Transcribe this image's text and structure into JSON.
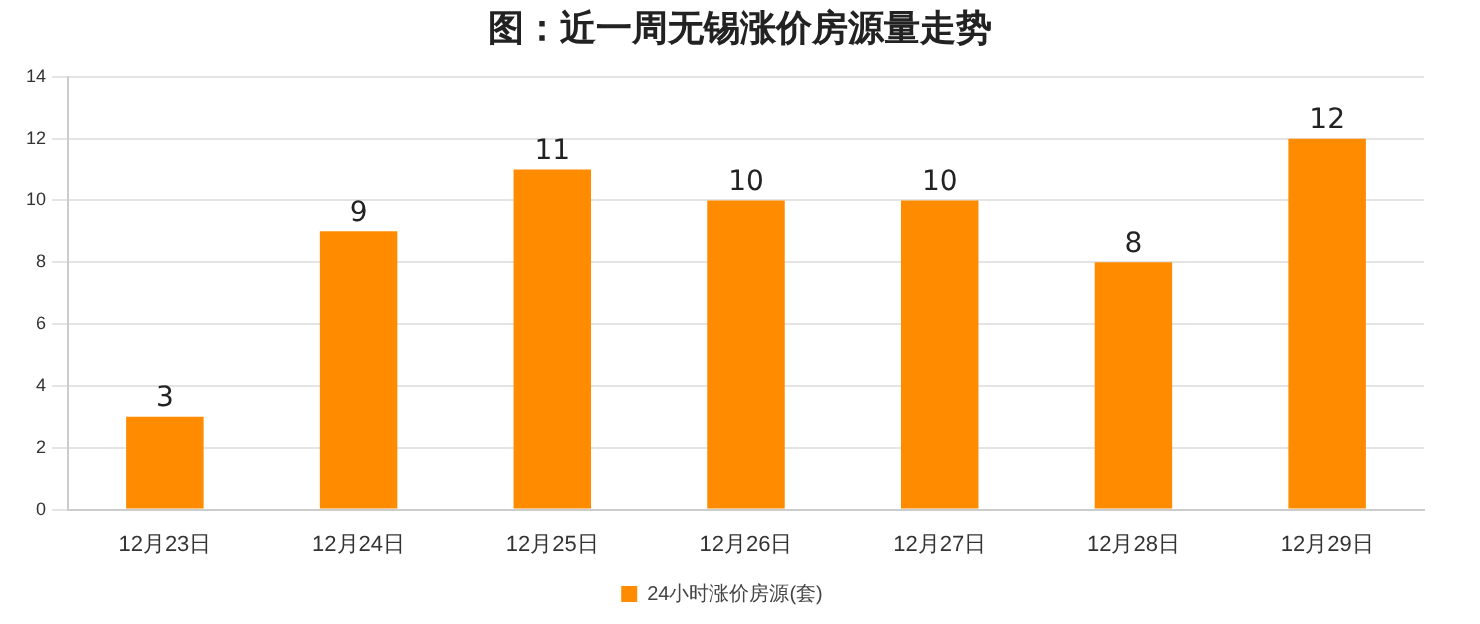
{
  "chart_data": {
    "type": "bar",
    "title": "图：近一周无锡涨价房源量走势",
    "categories": [
      "12月23日",
      "12月24日",
      "12月25日",
      "12月26日",
      "12月27日",
      "12月28日",
      "12月29日"
    ],
    "series": [
      {
        "name": "24小时涨价房源(套)",
        "color": "#ff8c00",
        "values": [
          3,
          9,
          11,
          10,
          10,
          8,
          12
        ]
      }
    ],
    "ylim": [
      0,
      14
    ],
    "yticks": [
      0,
      2,
      4,
      6,
      8,
      10,
      12,
      14
    ],
    "grid": "y",
    "legend": "bottom",
    "data_labels": true
  }
}
